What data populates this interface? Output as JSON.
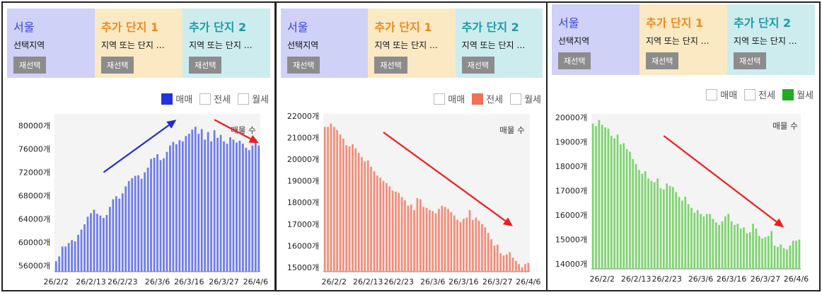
{
  "panels": [
    {
      "header": {
        "region": {
          "title": "서울",
          "subtitle": "선택지역",
          "button": "재선택"
        },
        "complex1": {
          "title": "추가 단지 1",
          "subtitle": "지역 또는 단지 …",
          "button": "재선택"
        },
        "complex2": {
          "title": "추가 단지 2",
          "subtitle": "지역 또는 단지 …",
          "button": "재선택"
        }
      },
      "legend": [
        {
          "label": "매매",
          "checked": true,
          "color": "#2233dd"
        },
        {
          "label": "전세",
          "checked": false,
          "color": "#f07058"
        },
        {
          "label": "월세",
          "checked": false,
          "color": "#33bb33"
        }
      ],
      "annotation": "매물 수",
      "chart_data": {
        "type": "bar",
        "series": [
          {
            "name": "매매",
            "color": "#6f7cea"
          }
        ],
        "ylim": [
          55000,
          82000
        ],
        "yticks": [
          56000,
          60000,
          64000,
          68000,
          72000,
          76000,
          80000
        ],
        "ytick_labels": [
          "56000개",
          "60000개",
          "64000개",
          "68000개",
          "72000개",
          "76000개",
          "80000개"
        ],
        "xtick_labels": [
          "26/2/2",
          "26/2/13",
          "26/2/23",
          "26/3/6",
          "26/3/16",
          "26/3/27",
          "26/4/6"
        ],
        "xtick_index": [
          0,
          11,
          21,
          32,
          42,
          53,
          63
        ],
        "values": [
          56800,
          57600,
          59300,
          59300,
          59900,
          60400,
          60200,
          61300,
          62200,
          63100,
          64400,
          65000,
          65600,
          64900,
          64600,
          64200,
          64700,
          66100,
          67400,
          67900,
          67500,
          68400,
          69600,
          70500,
          71000,
          71400,
          71500,
          70900,
          72000,
          72800,
          74300,
          74500,
          75100,
          74100,
          74400,
          75500,
          76600,
          77200,
          76800,
          77500,
          77300,
          78200,
          78600,
          79300,
          79800,
          78600,
          79400,
          77600,
          78900,
          77300,
          79200,
          77900,
          78400,
          77300,
          76900,
          78000,
          77600,
          77100,
          77400,
          76900,
          76200,
          75800,
          76600,
          77700,
          76600
        ],
        "trend_arrows": [
          {
            "from": [
              15,
              72000
            ],
            "to": [
              38,
              81000
            ],
            "color": "#1e2bd8"
          },
          {
            "from": [
              50,
              81000
            ],
            "to": [
              64,
              77000
            ],
            "color": "#ee1c1c"
          }
        ]
      }
    },
    {
      "header": {
        "region": {
          "title": "서울",
          "subtitle": "선택지역",
          "button": "재선택"
        },
        "complex1": {
          "title": "추가 단지 1",
          "subtitle": "지역 또는 단지 …",
          "button": "재선택"
        },
        "complex2": {
          "title": "추가 단지 2",
          "subtitle": "지역 또는 단지 …",
          "button": "재선택"
        }
      },
      "legend": [
        {
          "label": "매매",
          "checked": false,
          "color": "#2233dd"
        },
        {
          "label": "전세",
          "checked": true,
          "color": "#f07058"
        },
        {
          "label": "월세",
          "checked": false,
          "color": "#33bb33"
        }
      ],
      "annotation": "매물 수",
      "chart_data": {
        "type": "bar",
        "series": [
          {
            "name": "전세",
            "color": "#f48c78"
          }
        ],
        "ylim": [
          14800,
          22100
        ],
        "yticks": [
          15000,
          16000,
          17000,
          18000,
          19000,
          20000,
          21000,
          22000
        ],
        "ytick_labels": [
          "15000개",
          "16000개",
          "17000개",
          "18000개",
          "19000개",
          "20000개",
          "21000개",
          "22000개"
        ],
        "xtick_labels": [
          "26/2/2",
          "26/2/13",
          "26/2/23",
          "26/3/6",
          "26/3/16",
          "26/3/27",
          "26/4/6"
        ],
        "xtick_index": [
          3,
          14,
          24,
          35,
          45,
          56,
          66
        ],
        "values": [
          21500,
          21500,
          21650,
          21500,
          21350,
          21150,
          20950,
          20650,
          20600,
          20700,
          20500,
          20300,
          20100,
          19900,
          19950,
          19650,
          19450,
          19250,
          19150,
          19000,
          18900,
          18750,
          18550,
          18500,
          18450,
          18250,
          18100,
          17850,
          17900,
          17650,
          18200,
          18150,
          17800,
          17750,
          17650,
          17600,
          17500,
          17700,
          17850,
          17800,
          17700,
          17550,
          17400,
          17200,
          17100,
          17250,
          17300,
          17650,
          17200,
          17300,
          17150,
          17000,
          16850,
          16600,
          16300,
          16000,
          16050,
          15650,
          15550,
          15600,
          15700,
          15450,
          15300,
          15150,
          15000,
          15150,
          15200
        ],
        "trend_arrows": [
          {
            "from": [
              19,
              21250
            ],
            "to": [
              61,
              16900
            ],
            "color": "#ee1c1c"
          }
        ]
      }
    },
    {
      "header": {
        "region": {
          "title": "서울",
          "subtitle": "선택지역",
          "button": "재선택"
        },
        "complex1": {
          "title": "추가 단지 1",
          "subtitle": "지역 또는 단지 …",
          "button": "재선택"
        },
        "complex2": {
          "title": "추가 단지 2",
          "subtitle": "지역 또는 단지 …",
          "button": "재선택"
        }
      },
      "legend": [
        {
          "label": "매매",
          "checked": false,
          "color": "#2233dd"
        },
        {
          "label": "전세",
          "checked": false,
          "color": "#f07058"
        },
        {
          "label": "월세",
          "checked": true,
          "color": "#22aa22"
        }
      ],
      "annotation": "매물 수",
      "chart_data": {
        "type": "bar",
        "series": [
          {
            "name": "월세",
            "color": "#7dd46e"
          }
        ],
        "ylim": [
          13800,
          20150
        ],
        "yticks": [
          14000,
          15000,
          16000,
          17000,
          18000,
          19000,
          20000
        ],
        "ytick_labels": [
          "14000개",
          "15000개",
          "16000개",
          "17000개",
          "18000개",
          "19000개",
          "20000개"
        ],
        "xtick_labels": [
          "26/2/2",
          "26/2/13",
          "26/2/23",
          "26/3/6",
          "26/3/16",
          "26/3/27",
          "26/4/6"
        ],
        "xtick_index": [
          3,
          14,
          24,
          35,
          45,
          56,
          66
        ],
        "values": [
          19750,
          19650,
          19900,
          19700,
          19600,
          19550,
          19250,
          19150,
          19300,
          18900,
          18950,
          18700,
          18600,
          18300,
          18100,
          17850,
          17700,
          17800,
          17500,
          17400,
          17350,
          17500,
          17100,
          17050,
          17300,
          17200,
          17150,
          16950,
          16750,
          16600,
          16750,
          16450,
          16300,
          16100,
          16200,
          16050,
          15950,
          16050,
          16050,
          15850,
          15700,
          15600,
          15750,
          15950,
          16050,
          15750,
          15600,
          15650,
          15450,
          15500,
          15250,
          15300,
          15650,
          15450,
          15150,
          15050,
          15100,
          15150,
          15350,
          14750,
          14700,
          14800,
          14650,
          14600,
          14750,
          14950,
          14950,
          15000
        ],
        "trend_arrows": [
          {
            "from": [
              23,
              19250
            ],
            "to": [
              62,
              15500
            ],
            "color": "#ee1c1c"
          }
        ]
      }
    }
  ]
}
